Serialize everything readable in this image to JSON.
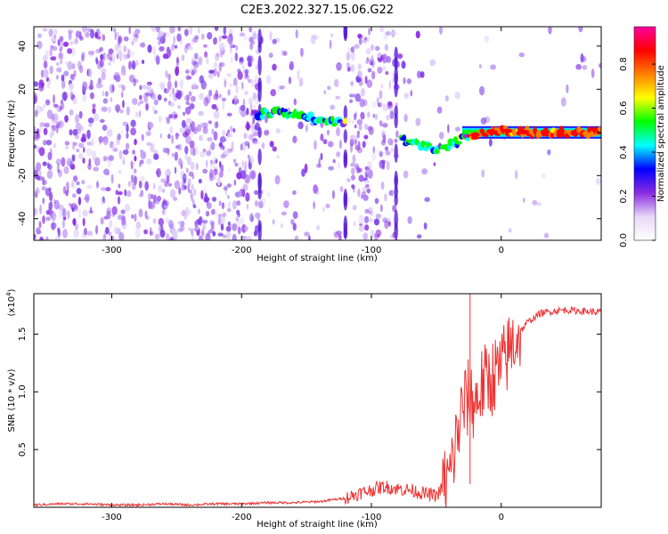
{
  "title": "C2E3.2022.327.15.06.G22",
  "chart_data": [
    {
      "type": "heatmap",
      "xlabel": "Height of straight line (km)",
      "ylabel": "Frequency (Hz)",
      "xlim": [
        -360,
        77
      ],
      "ylim": [
        -50,
        49
      ],
      "xticks": [
        -300,
        -200,
        -100,
        0
      ],
      "xtick_labels": [
        "-300",
        "-200",
        "-100",
        "0"
      ],
      "yticks": [
        -40,
        -20,
        0,
        20,
        40
      ],
      "ytick_labels": [
        "-40",
        "-20",
        "0",
        "20",
        "40"
      ],
      "colorbar": {
        "label": "Normalized spectral amplitude",
        "range": [
          0,
          0.97
        ],
        "ticks": [
          0.0,
          0.2,
          0.4,
          0.6,
          0.8
        ],
        "tick_labels": [
          "0.0",
          "0.2",
          "0.4",
          "0.6",
          "0.8"
        ],
        "colormap": [
          "#ffffff",
          "#e8d8f8",
          "#8a2be2",
          "#0000ff",
          "#00ffff",
          "#00ff00",
          "#ffff00",
          "#ff8000",
          "#ff0000",
          "#ff00a0"
        ]
      },
      "signal_track": [
        {
          "x": -190,
          "y": 8
        },
        {
          "x": -170,
          "y": 10
        },
        {
          "x": -150,
          "y": 7
        },
        {
          "x": -130,
          "y": 5
        },
        {
          "x": -120,
          "y": 5
        },
        {
          "x": -75,
          "y": -4
        },
        {
          "x": -60,
          "y": -6
        },
        {
          "x": -45,
          "y": -8
        },
        {
          "x": -30,
          "y": -3
        },
        {
          "x": -15,
          "y": 0
        },
        {
          "x": 0,
          "y": 1
        },
        {
          "x": 20,
          "y": 0
        },
        {
          "x": 77,
          "y": 0
        }
      ],
      "grid": false
    },
    {
      "type": "line",
      "xlabel": "Height of straight line (km)",
      "ylabel": "SNR (10 * v/v)",
      "y_multiplier_label": "(x10",
      "y_multiplier_exp": "4",
      "y_multiplier_close": ")",
      "xlim": [
        -360,
        77
      ],
      "ylim": [
        0,
        1.85
      ],
      "xticks": [
        -300,
        -200,
        -100,
        0
      ],
      "xtick_labels": [
        "-300",
        "-200",
        "-100",
        "0"
      ],
      "yticks": [
        0.5,
        1.0,
        1.5
      ],
      "ytick_labels": [
        "0.5",
        "1.0",
        "1.5"
      ],
      "series": [
        {
          "color": "#ee3333",
          "x": [
            -360,
            -340,
            -320,
            -300,
            -280,
            -260,
            -240,
            -220,
            -200,
            -180,
            -160,
            -140,
            -120,
            -110,
            -100,
            -90,
            -80,
            -70,
            -60,
            -50,
            -40,
            -35,
            -30,
            -25,
            -20,
            -15,
            -10,
            -5,
            0,
            10,
            20,
            30,
            40,
            50,
            60,
            77
          ],
          "y": [
            0.02,
            0.03,
            0.03,
            0.02,
            0.02,
            0.03,
            0.02,
            0.03,
            0.03,
            0.04,
            0.04,
            0.05,
            0.08,
            0.12,
            0.15,
            0.18,
            0.16,
            0.15,
            0.12,
            0.1,
            0.25,
            0.55,
            0.85,
            0.95,
            0.9,
            1.05,
            1.1,
            1.15,
            1.2,
            1.45,
            1.6,
            1.68,
            1.7,
            1.71,
            1.7,
            1.69
          ]
        }
      ],
      "grid": false
    }
  ]
}
